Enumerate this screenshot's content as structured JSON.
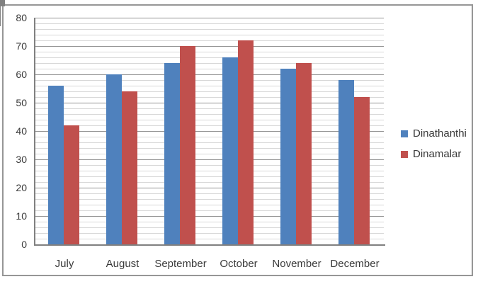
{
  "chart_data": {
    "type": "bar",
    "title": "",
    "xlabel": "",
    "ylabel": "",
    "categories": [
      "July",
      "August",
      "September",
      "October",
      "November",
      "December"
    ],
    "series": [
      {
        "name": "Dinathanthi",
        "color": "#4F81BD",
        "values": [
          56,
          60,
          64,
          66,
          62,
          58
        ]
      },
      {
        "name": "Dinamalar",
        "color": "#C0504D",
        "values": [
          42,
          54,
          70,
          72,
          64,
          52
        ]
      }
    ],
    "ylim": [
      0,
      80
    ],
    "y_major_unit": 10,
    "y_minor_unit": 2,
    "y_tick_labels": [
      "0",
      "10",
      "20",
      "30",
      "40",
      "50",
      "60",
      "70",
      "80"
    ],
    "grid": "horizontal major and minor gridlines on",
    "legend_position": "right"
  },
  "colors": {
    "background": "#ffffff",
    "chart_border": "#969696",
    "minor_gridline": "#d7d7d7",
    "major_gridline": "#929292",
    "axis_line": "#808080",
    "text": "#3a3a3a"
  }
}
